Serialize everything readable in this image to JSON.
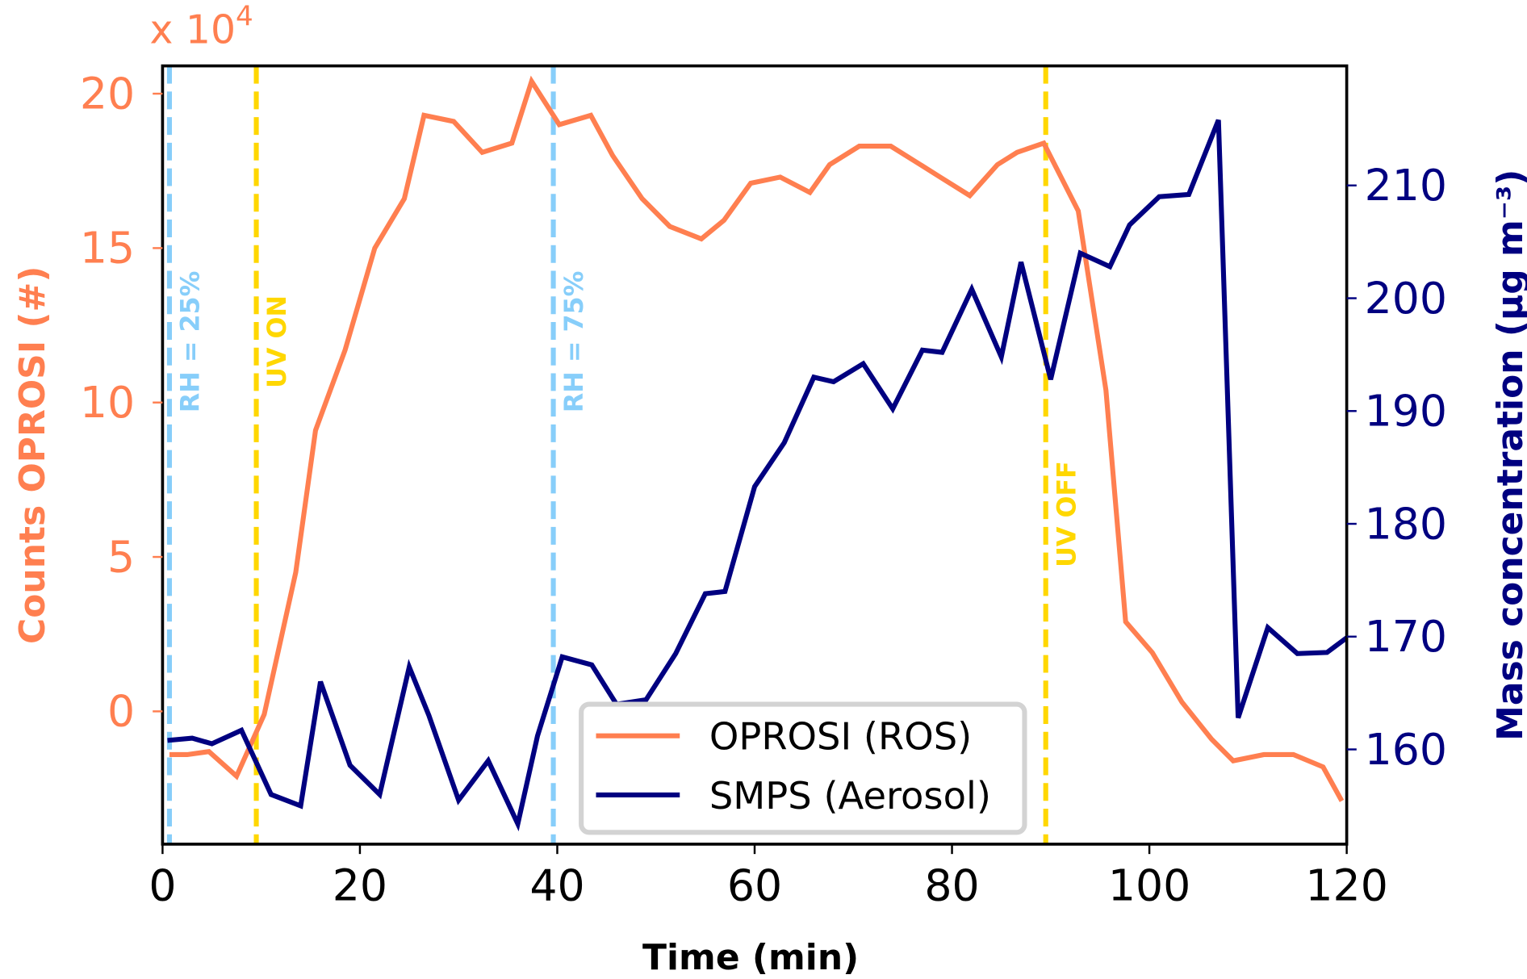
{
  "chart_data": {
    "type": "line",
    "title": "",
    "xlabel": "Time (min)",
    "ylabel_left": "Counts OPROSI (#)",
    "ylabel_right": "Mass concentration (μg m⁻³)",
    "left_axis_multiplier": "x 10",
    "left_axis_multiplier_exp": "4",
    "xlim": [
      0,
      120
    ],
    "ylim_left": [
      -4.3,
      20.9
    ],
    "ylim_right": [
      151.6,
      220.6
    ],
    "xticks": [
      0,
      20,
      40,
      60,
      80,
      100,
      120
    ],
    "xtick_labels": [
      "0",
      "20",
      "40",
      "60",
      "80",
      "100",
      "120"
    ],
    "yticks_left": [
      0,
      5,
      10,
      15,
      20
    ],
    "ytick_labels_left": [
      "0",
      "5",
      "10",
      "15",
      "20"
    ],
    "yticks_right": [
      160,
      170,
      180,
      190,
      200,
      210
    ],
    "ytick_labels_right": [
      "160",
      "170",
      "180",
      "190",
      "200",
      "210"
    ],
    "grid": false,
    "legend_position": "bottom-center",
    "colors": {
      "oprosi": "#ff7f50",
      "smps": "#000080",
      "rh": "#87cefa",
      "uv": "#ffd700",
      "axis": "#000000"
    },
    "series": [
      {
        "name": "OPROSI (ROS)",
        "axis": "left",
        "x": [
          0.7,
          2.5,
          4.7,
          7.5,
          10.3,
          13.5,
          15.5,
          18.5,
          21.5,
          24.5,
          26.5,
          29.5,
          32.4,
          35.4,
          37.4,
          40.2,
          43.4,
          45.6,
          48.6,
          51.4,
          54.6,
          56.9,
          59.6,
          62.6,
          65.6,
          67.6,
          70.6,
          73.8,
          76.8,
          78.8,
          81.8,
          84.6,
          86.6,
          89.3,
          92.8,
          95.6,
          97.6,
          100.3,
          103.3,
          106.3,
          108.5,
          111.6,
          114.6,
          117.6,
          119.5
        ],
        "values": [
          -1.4,
          -1.4,
          -1.3,
          -2.1,
          -0.1,
          4.5,
          9.1,
          11.7,
          15.0,
          16.6,
          19.3,
          19.1,
          18.1,
          18.4,
          20.4,
          19.0,
          19.3,
          18.0,
          16.6,
          15.7,
          15.3,
          15.9,
          17.1,
          17.3,
          16.8,
          17.7,
          18.3,
          18.3,
          17.7,
          17.3,
          16.7,
          17.7,
          18.1,
          18.4,
          16.2,
          10.4,
          2.9,
          1.9,
          0.3,
          -0.9,
          -1.6,
          -1.4,
          -1.4,
          -1.8,
          -2.9
        ]
      },
      {
        "name": "SMPS (Aerosol)",
        "axis": "right",
        "x": [
          0.5,
          3.0,
          5.0,
          8.0,
          11.0,
          14.0,
          16.0,
          19.0,
          22.0,
          25.0,
          27.0,
          30.0,
          33.0,
          36.0,
          38.0,
          40.5,
          43.5,
          46.0,
          49.0,
          52.0,
          55.0,
          57.0,
          60.0,
          63.0,
          66.0,
          68.0,
          71.0,
          74.0,
          77.0,
          79.0,
          82.0,
          85.0,
          87.0,
          90.0,
          93.0,
          96.0,
          98.0,
          101.0,
          104.0,
          107.0,
          109.0,
          112.0,
          115.0,
          118.0,
          120.0
        ],
        "values": [
          160.8,
          161.0,
          160.5,
          161.7,
          156.0,
          155.0,
          166.0,
          158.6,
          156.0,
          167.3,
          163.0,
          155.5,
          159.0,
          153.4,
          161.2,
          168.2,
          167.5,
          164.0,
          164.4,
          168.5,
          173.8,
          174.0,
          183.3,
          187.2,
          193.0,
          192.6,
          194.2,
          190.2,
          195.4,
          195.2,
          200.8,
          194.8,
          203.2,
          192.8,
          204.0,
          202.8,
          206.5,
          209.0,
          209.2,
          215.8,
          162.8,
          170.8,
          168.5,
          168.6,
          169.9
        ]
      }
    ],
    "vertical_lines": [
      {
        "x": 0.7,
        "label": "RH = 25%",
        "kind": "rh"
      },
      {
        "x": 9.5,
        "label": "UV ON",
        "kind": "uv"
      },
      {
        "x": 39.6,
        "label": "RH = 75%",
        "kind": "rh"
      },
      {
        "x": 89.5,
        "label": "UV OFF",
        "kind": "uv"
      }
    ],
    "legend": [
      "OPROSI (ROS)",
      "SMPS (Aerosol)"
    ]
  }
}
